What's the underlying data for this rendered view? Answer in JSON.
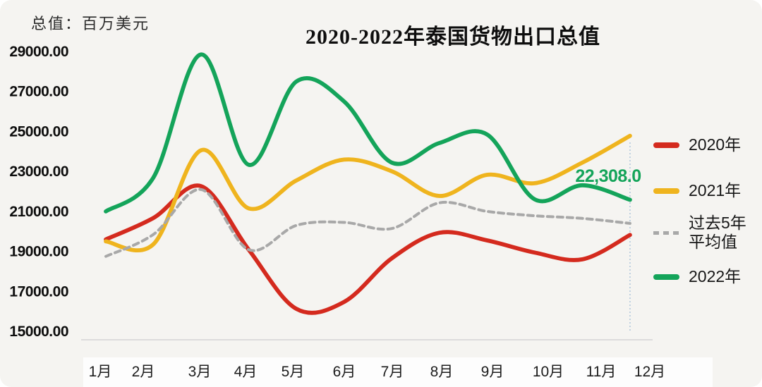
{
  "unit_label": "总值：百万美元",
  "title": "2020-2022年泰国货物出口总值",
  "annotation": {
    "text": "22,308.0",
    "color": "#14a45a"
  },
  "legend": {
    "items": [
      {
        "label": "2020年"
      },
      {
        "label": "2021年"
      },
      {
        "label_line1": "过去5年",
        "label_line2": "平均值"
      },
      {
        "label": "2022年"
      }
    ]
  },
  "chart_data": {
    "type": "line",
    "title": "2020-2022年泰国货物出口总值",
    "ylabel": "总值：百万美元",
    "categories": [
      "1月",
      "2月",
      "3月",
      "4月",
      "5月",
      "6月",
      "7月",
      "8月",
      "9月",
      "10月",
      "11月",
      "12月"
    ],
    "ylim": [
      15000,
      29000
    ],
    "yticks": [
      29000,
      27000,
      25000,
      23000,
      21000,
      19000,
      17000,
      15000
    ],
    "ytick_labels": [
      "29000.00",
      "27000.00",
      "25000.00",
      "23000.00",
      "21000.00",
      "19000.00",
      "17000.00",
      "15000.00"
    ],
    "grid": false,
    "legend_position": "right",
    "series": [
      {
        "name": "2020年",
        "color": "#d42a1e",
        "dash": false,
        "values": [
          19600,
          20670,
          22260,
          19080,
          16120,
          16470,
          18650,
          19930,
          19550,
          18940,
          18600,
          19820
        ]
      },
      {
        "name": "2021年",
        "color": "#efb41e",
        "dash": false,
        "values": [
          19500,
          19360,
          24060,
          21150,
          22550,
          23590,
          23010,
          21770,
          22830,
          22410,
          23440,
          24780
        ]
      },
      {
        "name": "过去5年平均值",
        "color": "#a8a8a8",
        "dash": true,
        "values": [
          18750,
          19850,
          22090,
          19080,
          20300,
          20450,
          20140,
          21430,
          21000,
          20780,
          20650,
          20400
        ]
      },
      {
        "name": "2022年",
        "color": "#14a45a",
        "dash": false,
        "values": [
          21000,
          22700,
          28850,
          23330,
          27500,
          26500,
          23440,
          24420,
          24850,
          21600,
          22308,
          21580
        ]
      }
    ],
    "annotation": {
      "text": "22,308.0",
      "series": "2022年",
      "month": "11月",
      "value": 22308
    },
    "marker_line_color": "#a9c2da"
  }
}
